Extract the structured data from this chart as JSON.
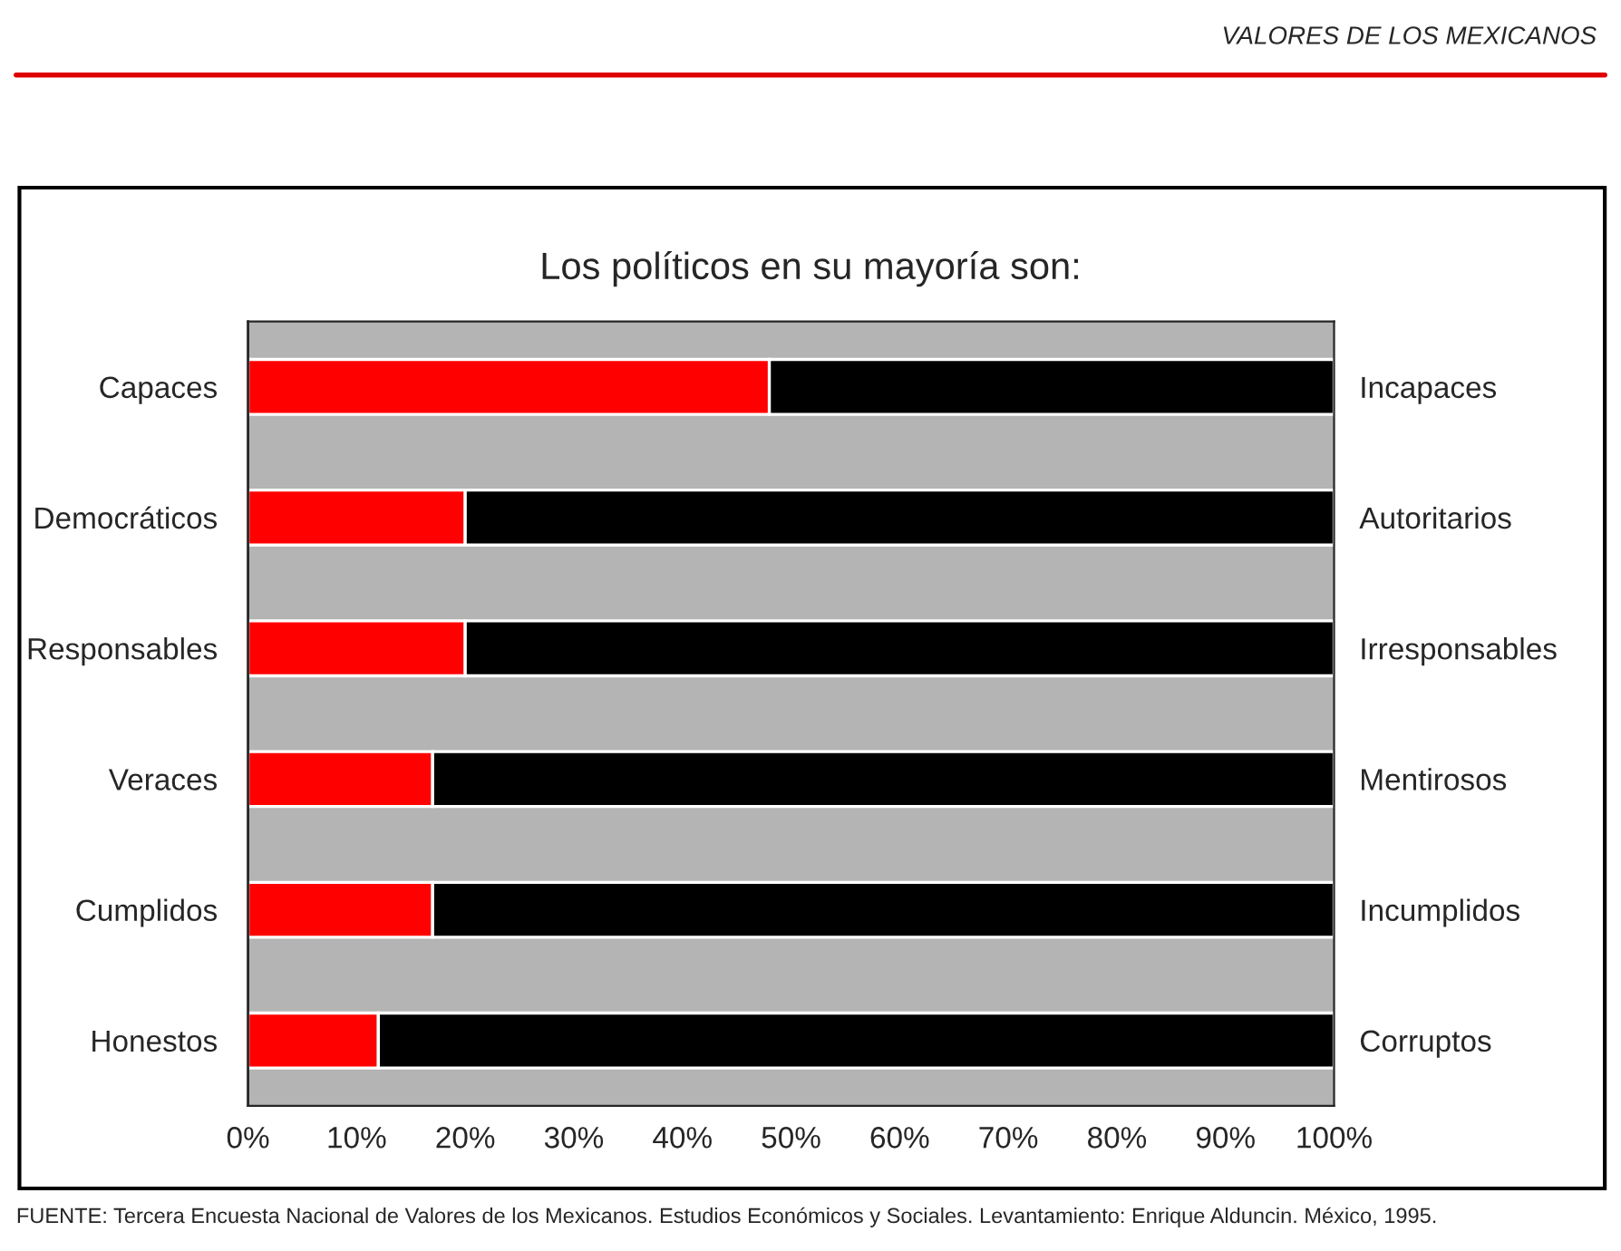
{
  "chart_data": {
    "type": "bar",
    "orientation": "horizontal",
    "stacked": true,
    "title": "Los políticos en su mayoría son:",
    "categories": [
      "Capaces",
      "Democráticos",
      "Responsables",
      "Veraces",
      "Cumplidos",
      "Honestos"
    ],
    "y2_categories": [
      "Incapaces",
      "Autoritarios",
      "Irresponsables",
      "Mentirosos",
      "Incumplidos",
      "Corruptos"
    ],
    "series": [
      {
        "color": "#ff0000",
        "values": [
          48,
          20,
          20,
          17,
          17,
          12
        ]
      },
      {
        "color": "#000000",
        "values": [
          52,
          80,
          80,
          83,
          83,
          88
        ]
      }
    ],
    "xlim": [
      0,
      100
    ],
    "xticks": [
      {
        "value": 0,
        "label": "0%"
      },
      {
        "value": 10,
        "label": "10%"
      },
      {
        "value": 20,
        "label": "20%"
      },
      {
        "value": 30,
        "label": "30%"
      },
      {
        "value": 40,
        "label": "40%"
      },
      {
        "value": 50,
        "label": "50%"
      },
      {
        "value": 60,
        "label": "60%"
      },
      {
        "value": 70,
        "label": "70%"
      },
      {
        "value": 80,
        "label": "80%"
      },
      {
        "value": 90,
        "label": "90%"
      },
      {
        "value": 100,
        "label": "100%"
      }
    ],
    "grid": false,
    "legend": false,
    "annotations": [
      "VALORES DE LOS MEXICANOS",
      "FUENTE: Tercera Encuesta Nacional de Valores de los Mexicanos. Estudios Económicos y Sociales. Levantamiento: Enrique Alduncin. México, 1995."
    ]
  }
}
